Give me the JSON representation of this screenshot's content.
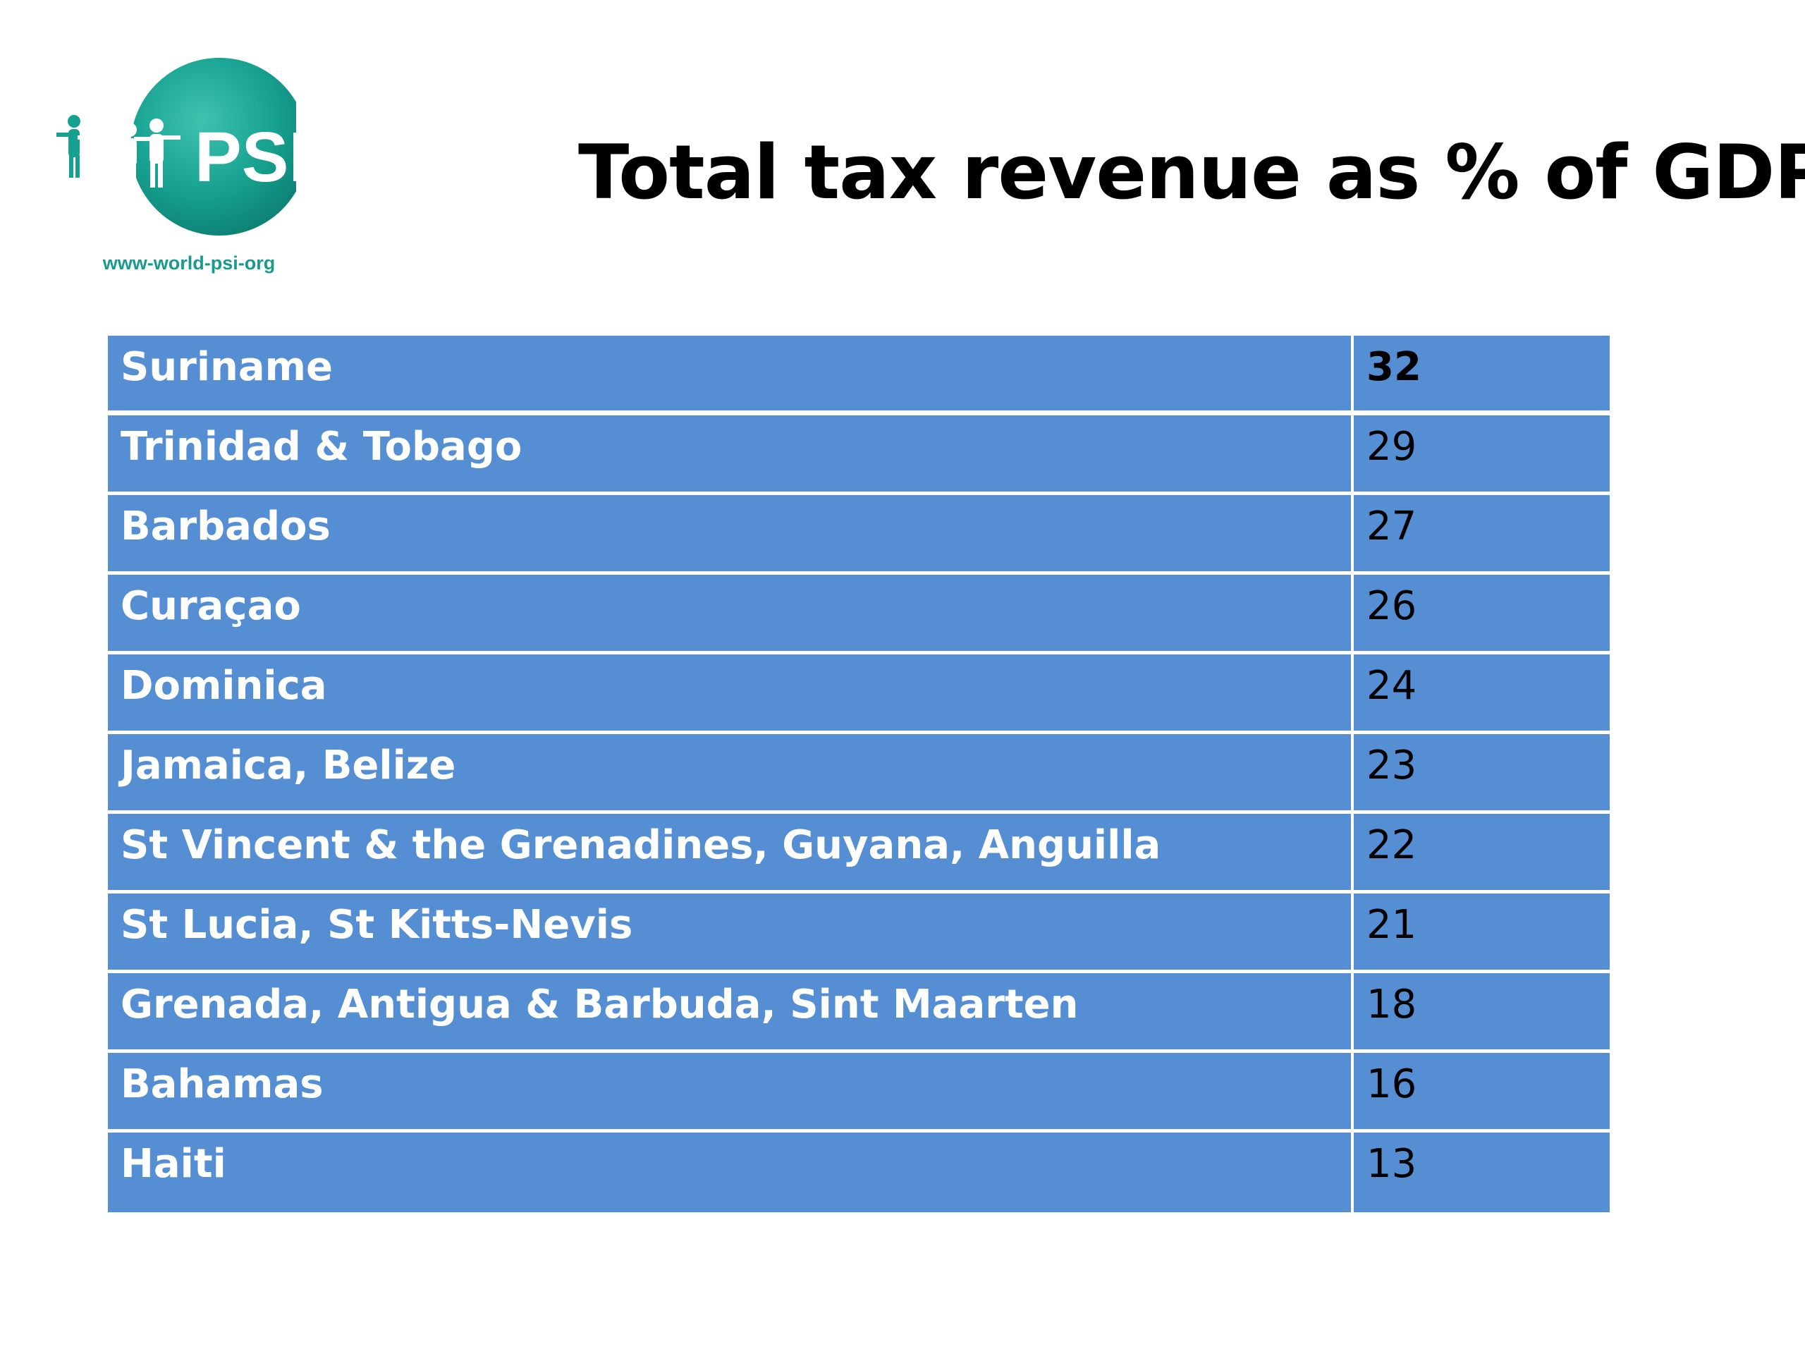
{
  "logo": {
    "text": "PSI",
    "url": "www-world-psi-org",
    "color": "#1a9a8a"
  },
  "title": "Total tax revenue as % of GDP",
  "table": {
    "header_color": "#568ed4",
    "rows": [
      {
        "country": "Suriname",
        "value": "32"
      },
      {
        "country": "Trinidad & Tobago",
        "value": "29"
      },
      {
        "country": "Barbados",
        "value": "27"
      },
      {
        "country": "Curaçao",
        "value": "26"
      },
      {
        "country": "Dominica",
        "value": "24"
      },
      {
        "country": "Jamaica, Belize",
        "value": "23"
      },
      {
        "country": "St Vincent & the Grenadines, Guyana, Anguilla",
        "value": "22"
      },
      {
        "country": "St Lucia, St Kitts-Nevis",
        "value": "21"
      },
      {
        "country": "Grenada, Antigua & Barbuda, Sint Maarten",
        "value": "18"
      },
      {
        "country": "Bahamas",
        "value": "16"
      },
      {
        "country": "Haiti",
        "value": "13"
      }
    ]
  }
}
